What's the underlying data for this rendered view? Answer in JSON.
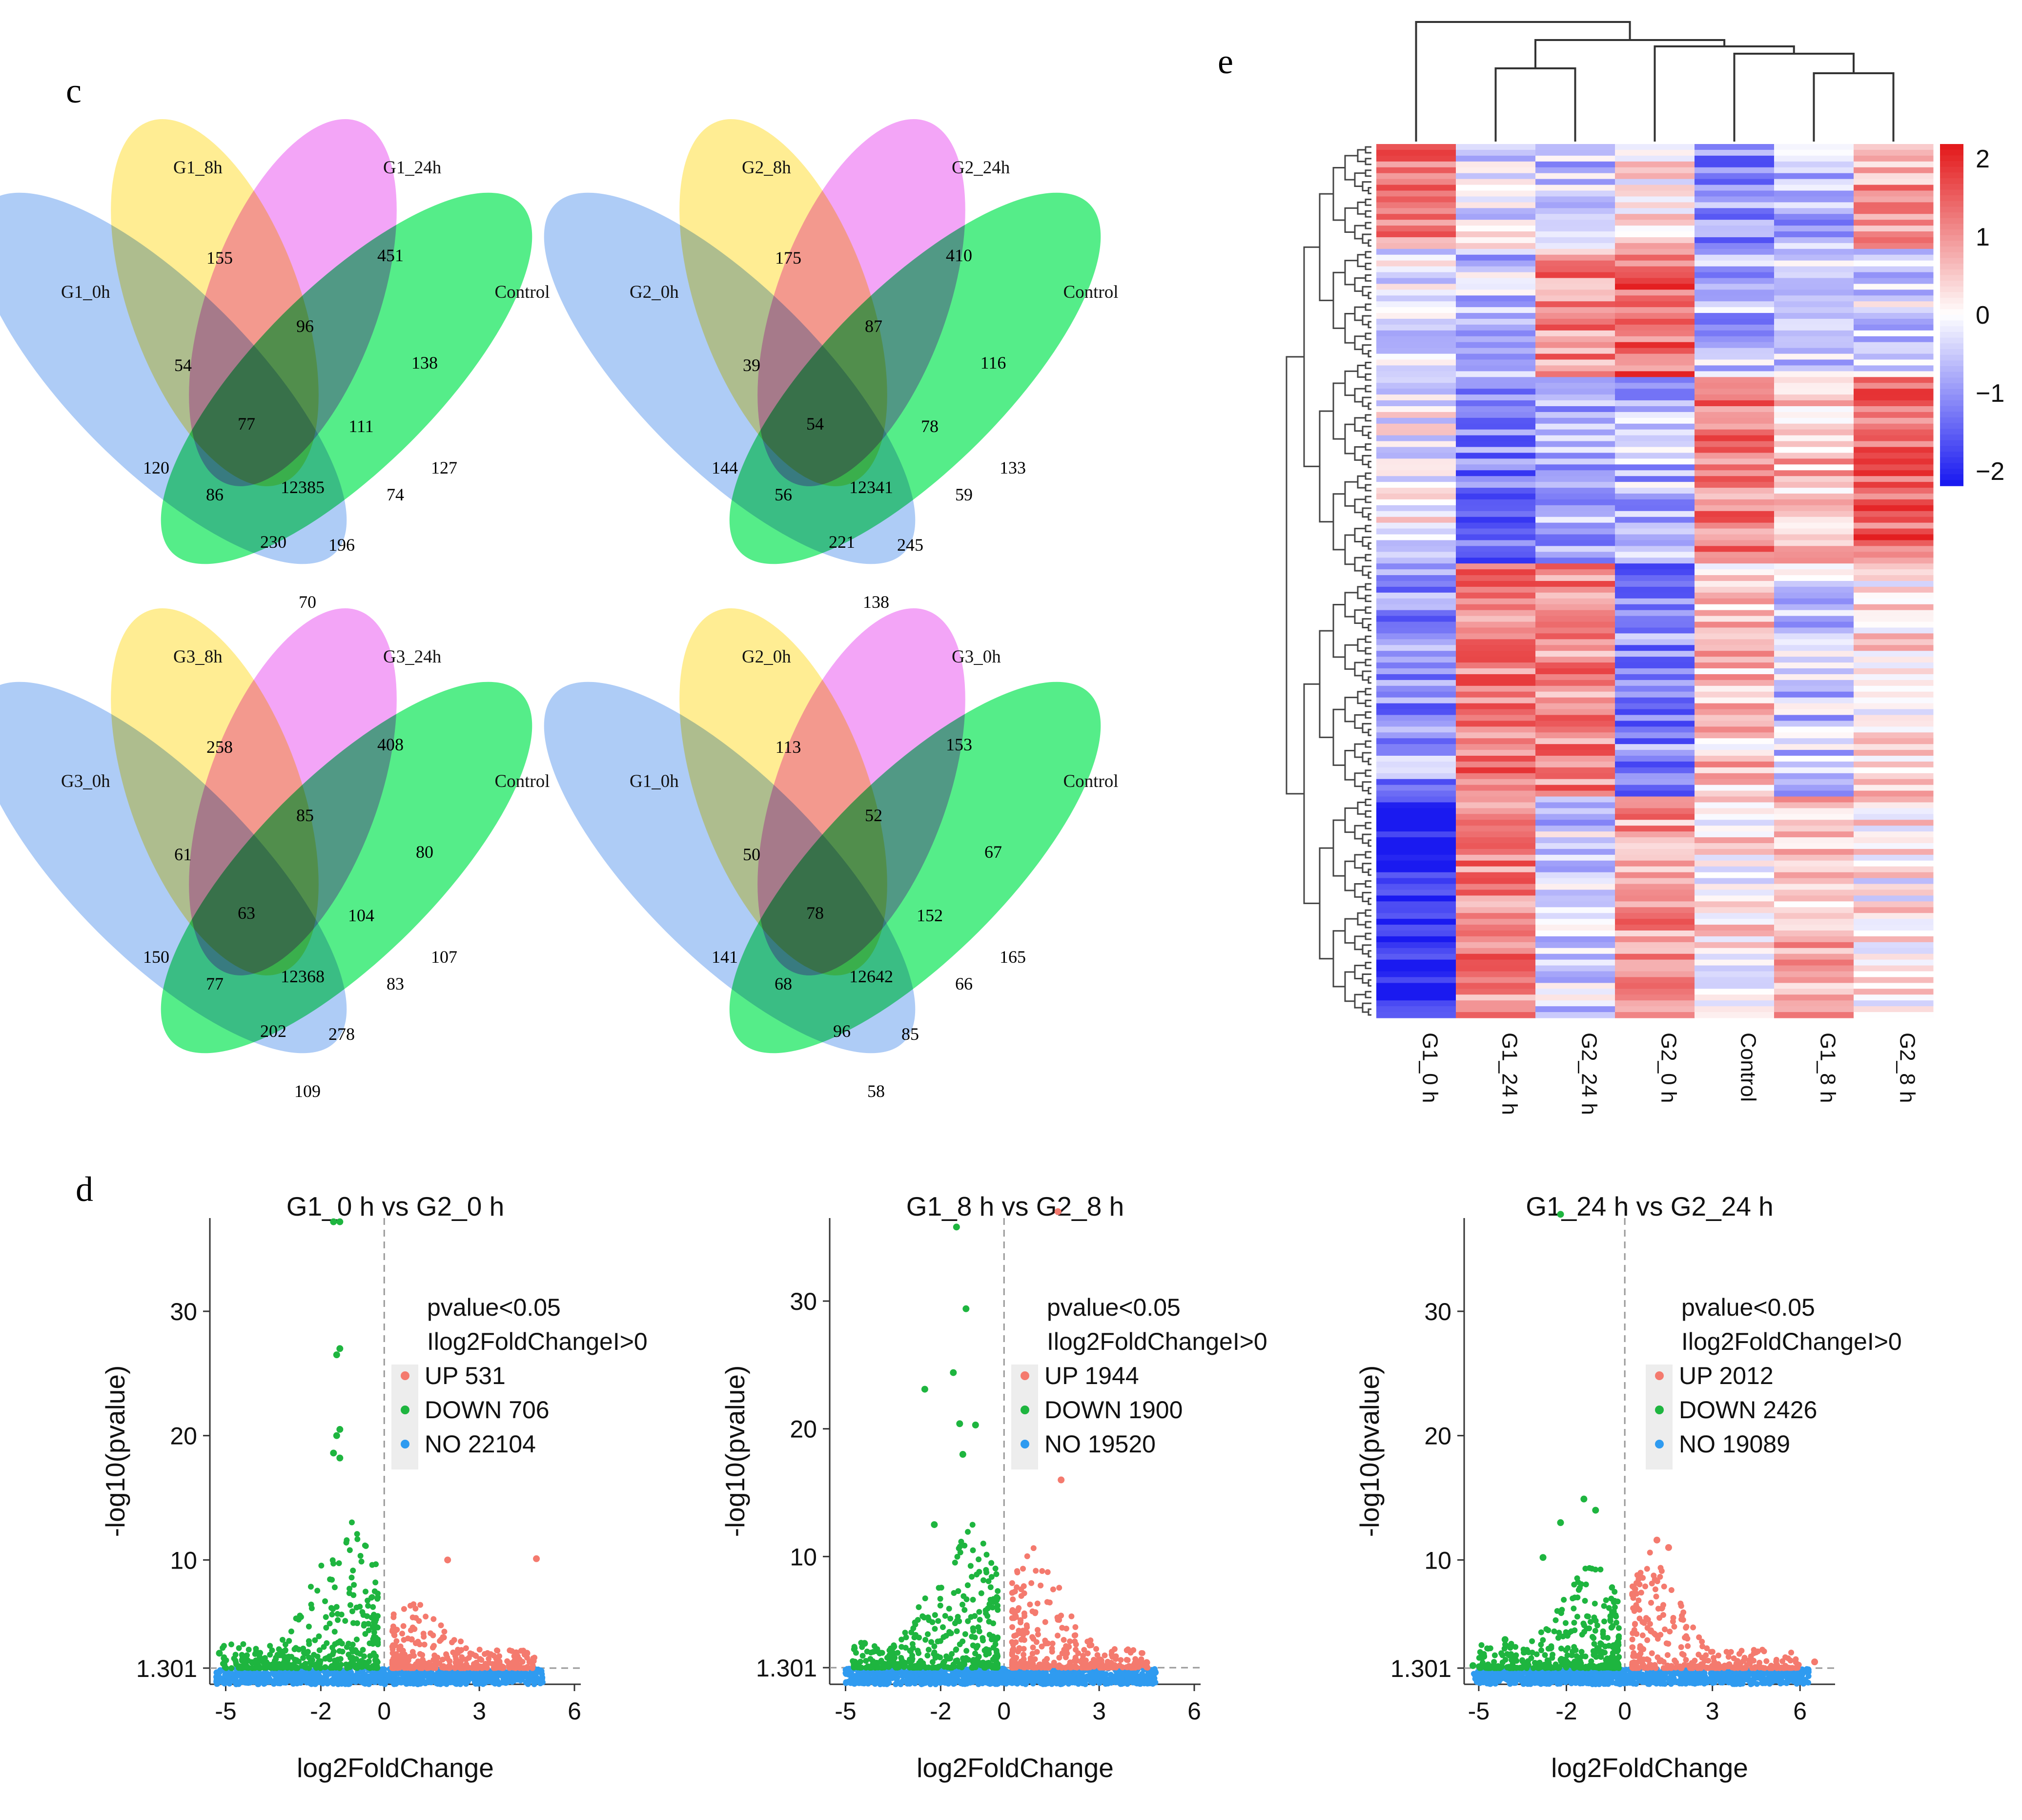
{
  "panels": {
    "c": "c",
    "d": "d",
    "e": "e"
  },
  "colors": {
    "set1": "#8fb8f2",
    "set2": "#ffe66a",
    "set3": "#ee82f4",
    "set4": "#14e65c",
    "up": "#f47a6e",
    "down": "#1eb53f",
    "no": "#2f9bf0",
    "high": "#e31a1c",
    "low": "#1a1af0"
  },
  "venn": [
    {
      "labels": [
        "G1_0h",
        "G1_8h",
        "G1_24h",
        "Control"
      ],
      "counts": {
        "A": 120,
        "B": 155,
        "C": 451,
        "D": 127,
        "AB": 54,
        "AC": 86,
        "AD": 70,
        "BC": 96,
        "BD": 74,
        "CD": 138,
        "ABC": 77,
        "ABD": 230,
        "ACD": 196,
        "BCD": 111,
        "ABCD": 12385
      }
    },
    {
      "labels": [
        "G2_0h",
        "G2_8h",
        "G2_24h",
        "Control"
      ],
      "counts": {
        "A": 144,
        "B": 175,
        "C": 410,
        "D": 133,
        "AB": 39,
        "AC": 56,
        "AD": 138,
        "BC": 87,
        "BD": 59,
        "CD": 116,
        "ABC": 54,
        "ABD": 221,
        "ACD": 245,
        "BCD": 78,
        "ABCD": 12341
      }
    },
    {
      "labels": [
        "G3_0h",
        "G3_8h",
        "G3_24h",
        "Control"
      ],
      "counts": {
        "A": 150,
        "B": 258,
        "C": 408,
        "D": 107,
        "AB": 61,
        "AC": 77,
        "AD": 109,
        "BC": 85,
        "BD": 83,
        "CD": 80,
        "ABC": 63,
        "ABD": 202,
        "ACD": 278,
        "BCD": 104,
        "ABCD": 12368
      }
    },
    {
      "labels": [
        "G1_0h",
        "G2_0h",
        "G3_0h",
        "Control"
      ],
      "counts": {
        "A": 141,
        "B": 113,
        "C": 153,
        "D": 165,
        "AB": 50,
        "AC": 68,
        "AD": 58,
        "BC": 52,
        "BD": 66,
        "CD": 67,
        "ABC": 78,
        "ABD": 96,
        "ACD": 85,
        "BCD": 152,
        "ABCD": 12642
      }
    }
  ],
  "chart_data": [
    {
      "type": "scatter",
      "title": "G1_0 h vs G2_0 h",
      "xlabel": "log2FoldChange",
      "ylabel": "-log10(pvalue)",
      "xticks": [
        "-5",
        "-2",
        "0",
        "3",
        "6"
      ],
      "yticks": [
        "1.301",
        "10",
        "20",
        "30"
      ],
      "xlim": [
        -5.5,
        6.2
      ],
      "ylim": [
        0,
        37.5
      ],
      "threshold": 1.301,
      "legend": {
        "title1": "pvalue<0.05",
        "title2": "Ilog2FoldChangeI>0",
        "up": "UP 531",
        "down": "DOWN 706",
        "no": "NO 22104"
      },
      "counts": {
        "up": 531,
        "down": 706,
        "no": 22104
      },
      "highlights": [
        [
          -1.6,
          37.2
        ],
        [
          -1.4,
          37.2
        ],
        [
          -1.4,
          27
        ],
        [
          -1.5,
          26.5
        ],
        [
          -1.4,
          20.5
        ],
        [
          -1.5,
          20
        ],
        [
          -1.6,
          18.6
        ],
        [
          -1.4,
          18.2
        ],
        [
          2.0,
          10
        ],
        [
          4.8,
          10.1
        ],
        [
          -5.2,
          2.5
        ],
        [
          4.5,
          2.5
        ]
      ],
      "spread": {
        "xmin": -5.3,
        "xmax": 5.0,
        "ymax": 19,
        "upmax": 5.5
      }
    },
    {
      "type": "scatter",
      "title": "G1_8 h vs G2_8 h",
      "xlabel": "log2FoldChange",
      "ylabel": "-log10(pvalue)",
      "xticks": [
        "-5",
        "-2",
        "0",
        "3",
        "6"
      ],
      "yticks": [
        "1.301",
        "10",
        "20",
        "30"
      ],
      "xlim": [
        -5.5,
        6.2
      ],
      "ylim": [
        0,
        36.5
      ],
      "threshold": 1.301,
      "legend": {
        "title1": "pvalue<0.05",
        "title2": "Ilog2FoldChangeI>0",
        "up": "UP 1944",
        "down": "DOWN 1900",
        "no": "NO 19520"
      },
      "counts": {
        "up": 1944,
        "down": 1900,
        "no": 19520
      },
      "highlights": [
        [
          -1.5,
          35.8
        ],
        [
          1.7,
          37
        ],
        [
          -1.2,
          29.4
        ],
        [
          -1.6,
          24.4
        ],
        [
          -2.5,
          23.1
        ],
        [
          -1.4,
          20.4
        ],
        [
          -0.9,
          20.3
        ],
        [
          -2.2,
          12.5
        ],
        [
          1.8,
          16
        ],
        [
          -1.3,
          18
        ],
        [
          -4.4,
          3.2
        ],
        [
          4.5,
          1.7
        ]
      ],
      "spread": {
        "xmin": -5.0,
        "xmax": 4.8,
        "ymax": 18,
        "upmax": 11
      }
    },
    {
      "type": "scatter",
      "title": "G1_24 h vs G2_24 h",
      "xlabel": "log2FoldChange",
      "ylabel": "-log10(pvalue)",
      "xticks": [
        "-5",
        "-2",
        "0",
        "3",
        "6"
      ],
      "yticks": [
        "1.301",
        "10",
        "20",
        "30"
      ],
      "xlim": [
        -5.5,
        7.2
      ],
      "ylim": [
        0,
        37.5
      ],
      "threshold": 1.301,
      "legend": {
        "title1": "pvalue<0.05",
        "title2": "Ilog2FoldChangeI>0",
        "up": "UP 2012",
        "down": "DOWN 2426",
        "no": "NO 19089"
      },
      "counts": {
        "up": 2012,
        "down": 2426,
        "no": 19089
      },
      "highlights": [
        [
          -2.2,
          37.8
        ],
        [
          -1.4,
          14.9
        ],
        [
          -1.0,
          14
        ],
        [
          -2.2,
          13
        ],
        [
          -2.8,
          10.2
        ],
        [
          1.1,
          11.6
        ],
        [
          1.5,
          11
        ],
        [
          -4.1,
          3.6
        ],
        [
          6.5,
          1.8
        ],
        [
          -5.2,
          1.5
        ]
      ],
      "spread": {
        "xmin": -5.2,
        "xmax": 6.3,
        "ymax": 13,
        "upmax": 11
      }
    },
    {
      "type": "heatmap",
      "columns": [
        "G1_0 h",
        "G1_24 h",
        "G2_24 h",
        "G2_0 h",
        "Control",
        "G1_8 h",
        "G2_8 h"
      ],
      "colorbar_ticks": [
        "2",
        "1",
        "0",
        "−1",
        "−2"
      ],
      "colorbar_range": [
        -2,
        2
      ],
      "row_count": 150,
      "blocks": [
        {
          "rows": 18,
          "profile": [
            1.1,
            -0.2,
            -0.5,
            0.2,
            -0.9,
            -0.7,
            0.8
          ]
        },
        {
          "rows": 22,
          "profile": [
            -0.2,
            -0.5,
            1.0,
            1.3,
            -0.6,
            -0.4,
            -0.3
          ]
        },
        {
          "rows": 32,
          "profile": [
            0.0,
            -1.1,
            -0.8,
            -0.6,
            1.1,
            0.6,
            1.3
          ]
        },
        {
          "rows": 40,
          "profile": [
            -0.9,
            1.2,
            1.0,
            -1.0,
            0.5,
            -0.5,
            0.3
          ]
        },
        {
          "rows": 38,
          "profile": [
            -2.0,
            1.1,
            -0.4,
            0.9,
            0.2,
            0.6,
            0.1
          ]
        }
      ]
    }
  ]
}
